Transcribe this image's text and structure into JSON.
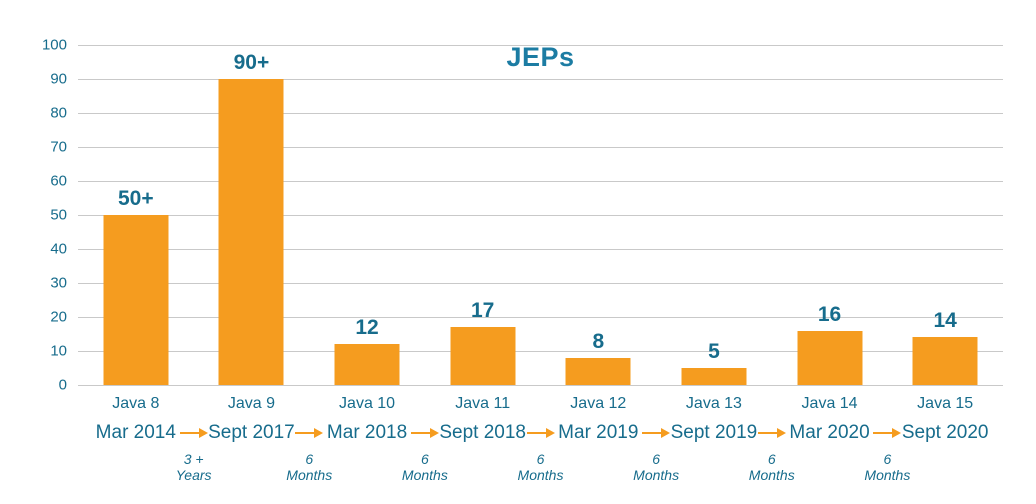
{
  "chart_data": {
    "type": "bar",
    "title": "JEPs",
    "categories": [
      "Java 8",
      "Java 9",
      "Java 10",
      "Java 11",
      "Java 12",
      "Java 13",
      "Java 14",
      "Java 15"
    ],
    "release_dates": [
      "Mar 2014",
      "Sept 2017",
      "Mar 2018",
      "Sept 2018",
      "Mar 2019",
      "Sept 2019",
      "Mar 2020",
      "Sept 2020"
    ],
    "values": [
      50,
      90,
      12,
      17,
      8,
      5,
      16,
      14
    ],
    "value_labels": [
      "50+",
      "90+",
      "12",
      "17",
      "8",
      "5",
      "16",
      "14"
    ],
    "gap_labels": [
      {
        "line1": "3 +",
        "line2": "Years"
      },
      {
        "line1": "6",
        "line2": "Months"
      },
      {
        "line1": "6",
        "line2": "Months"
      },
      {
        "line1": "6",
        "line2": "Months"
      },
      {
        "line1": "6",
        "line2": "Months"
      },
      {
        "line1": "6",
        "line2": "Months"
      },
      {
        "line1": "6",
        "line2": "Months"
      }
    ],
    "xlabel": "",
    "ylabel": "",
    "ylim": [
      0,
      100
    ],
    "ytick_step": 10,
    "grid": "horizontal-only",
    "legend_position": "none",
    "colors": {
      "bar": "#f59c1f",
      "arrow": "#f59c1f",
      "text": "#176c8c",
      "title": "#1c7ca3",
      "gridline": "#c9c9c9"
    }
  }
}
